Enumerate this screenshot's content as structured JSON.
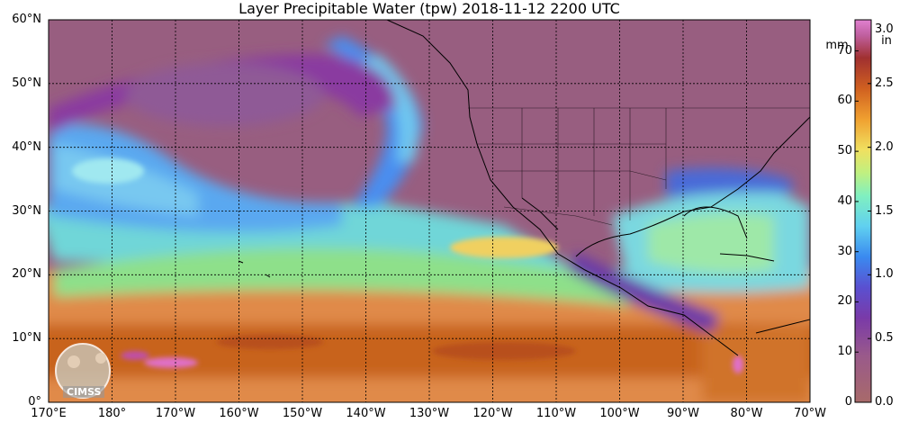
{
  "title": "Layer Precipitable Water (tpw)  2018-11-12 2200 UTC",
  "map": {
    "lat_labels": [
      "60°N",
      "50°N",
      "40°N",
      "30°N",
      "20°N",
      "10°N",
      "0°"
    ],
    "lon_labels": [
      "170°E",
      "180°",
      "170°W",
      "160°W",
      "150°W",
      "140°W",
      "130°W",
      "120°W",
      "110°W",
      "100°W",
      "90°W",
      "80°W",
      "70°W"
    ],
    "logo_text": "CIMSS"
  },
  "colorbar": {
    "mm_unit": "mm",
    "in_unit": "in",
    "mm_labels": [
      "70",
      "60",
      "50",
      "40",
      "30",
      "20",
      "10",
      "0"
    ],
    "in_labels": [
      "3.0",
      "2.5",
      "2.0",
      "1.5",
      "1.0",
      "0.5",
      "0.0"
    ]
  },
  "colors": {
    "dry": "#9a6a78",
    "purple": "#8a3a9a",
    "blue": "#4a7af0",
    "cyan": "#70e0f0",
    "green": "#90e890",
    "yellow": "#f0e070",
    "orange": "#f08a30",
    "brown": "#a84a20",
    "pink": "#e070c8"
  }
}
